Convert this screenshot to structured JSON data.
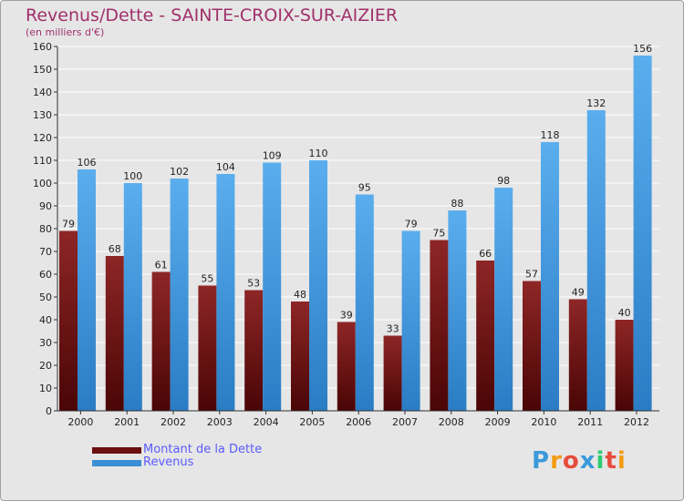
{
  "chart_data": {
    "type": "bar",
    "title": "Revenus/Dette - SAINTE-CROIX-SUR-AIZIER",
    "subtitle": "(en milliers d'€)",
    "xlabel": "",
    "ylabel": "",
    "ylim": [
      0,
      160
    ],
    "ytick_step": 10,
    "grid": true,
    "categories": [
      "2000",
      "2001",
      "2002",
      "2003",
      "2004",
      "2005",
      "2006",
      "2007",
      "2008",
      "2009",
      "2010",
      "2011",
      "2012"
    ],
    "series": [
      {
        "name": "Montant de la Dette",
        "color": "#7a1414",
        "values": [
          79,
          68,
          61,
          55,
          53,
          48,
          39,
          33,
          75,
          66,
          57,
          49,
          40
        ]
      },
      {
        "name": "Revenus",
        "color": "#3a8fd6",
        "values": [
          106,
          100,
          102,
          104,
          109,
          110,
          95,
          79,
          88,
          98,
          118,
          132,
          156
        ]
      }
    ],
    "legend_position": "bottom-left"
  },
  "logo": {
    "letters": [
      "P",
      "r",
      "o",
      "x",
      "i",
      "t",
      "i"
    ],
    "colors": [
      "#3a9ad9",
      "#f39c12",
      "#e74c3c",
      "#3a9ad9",
      "#2ecc71",
      "#e74c3c",
      "#f39c12"
    ]
  }
}
